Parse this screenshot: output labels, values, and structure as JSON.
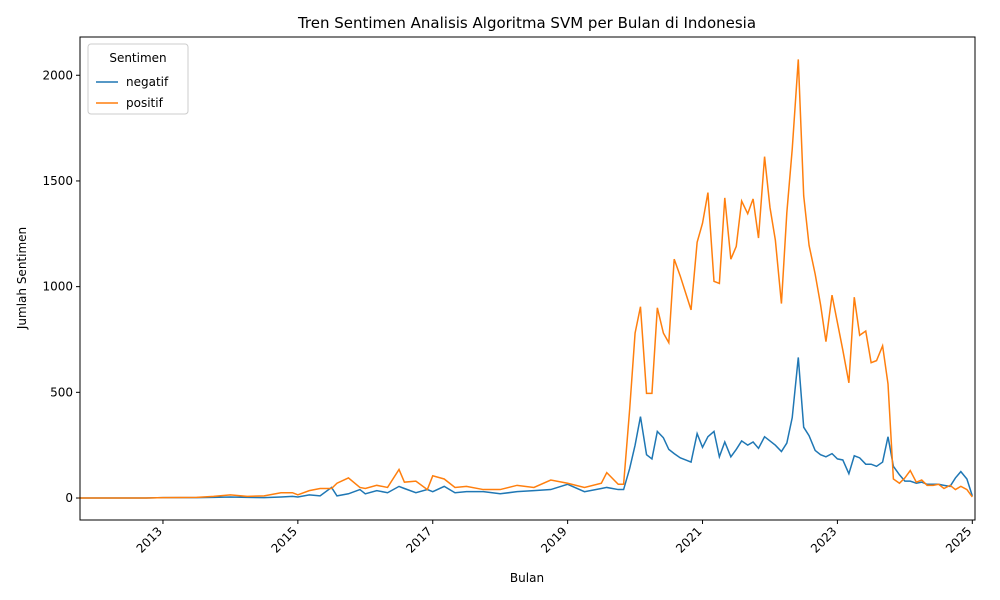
{
  "chart_data": {
    "type": "line",
    "title": "Tren Sentimen Analisis Algoritma SVM per Bulan di Indonesia",
    "x_label": "Bulan",
    "y_label": "Jumlah Sentimen",
    "legend_title": "Sentimen",
    "legend": "upper left",
    "xlim": [
      2011.77,
      2025.04
    ],
    "xticks": [
      2013,
      2015,
      2017,
      2019,
      2021,
      2023,
      2025
    ],
    "ylim": [
      -104,
      2181
    ],
    "yticks": [
      0,
      500,
      1000,
      1500,
      2000
    ],
    "x": [
      2011.75,
      2012.25,
      2012.75,
      2013.0,
      2013.5,
      2013.75,
      2014.0,
      2014.25,
      2014.5,
      2014.75,
      2014.92,
      2015.0,
      2015.17,
      2015.33,
      2015.5,
      2015.58,
      2015.75,
      2015.92,
      2016.0,
      2016.17,
      2016.33,
      2016.5,
      2016.58,
      2016.75,
      2016.92,
      2017.0,
      2017.17,
      2017.33,
      2017.5,
      2017.75,
      2018.0,
      2018.25,
      2018.5,
      2018.75,
      2019.0,
      2019.25,
      2019.5,
      2019.58,
      2019.75,
      2019.83,
      2019.92,
      2020.0,
      2020.08,
      2020.17,
      2020.25,
      2020.33,
      2020.42,
      2020.5,
      2020.58,
      2020.67,
      2020.75,
      2020.83,
      2020.92,
      2021.0,
      2021.08,
      2021.17,
      2021.25,
      2021.33,
      2021.42,
      2021.5,
      2021.58,
      2021.67,
      2021.75,
      2021.83,
      2021.92,
      2022.0,
      2022.08,
      2022.17,
      2022.25,
      2022.33,
      2022.42,
      2022.5,
      2022.58,
      2022.67,
      2022.75,
      2022.83,
      2022.92,
      2023.0,
      2023.08,
      2023.17,
      2023.25,
      2023.33,
      2023.42,
      2023.5,
      2023.58,
      2023.67,
      2023.75,
      2023.83,
      2023.92,
      2024.0,
      2024.08,
      2024.17,
      2024.25,
      2024.33,
      2024.42,
      2024.5,
      2024.58,
      2024.67,
      2024.75,
      2024.83,
      2024.92,
      2025.0
    ],
    "series": [
      {
        "name": "negatif",
        "color": "#1f77b4",
        "values": [
          0,
          0,
          0,
          2,
          2,
          3,
          5,
          3,
          2,
          5,
          8,
          5,
          15,
          10,
          50,
          10,
          20,
          40,
          20,
          35,
          25,
          55,
          45,
          25,
          40,
          30,
          55,
          25,
          30,
          30,
          20,
          30,
          35,
          40,
          65,
          30,
          45,
          50,
          40,
          40,
          140,
          250,
          385,
          205,
          185,
          315,
          285,
          230,
          210,
          190,
          180,
          170,
          305,
          240,
          290,
          315,
          195,
          265,
          195,
          230,
          270,
          250,
          265,
          235,
          290,
          270,
          250,
          220,
          260,
          380,
          665,
          335,
          295,
          225,
          205,
          195,
          210,
          185,
          180,
          115,
          200,
          190,
          160,
          160,
          150,
          170,
          290,
          150,
          110,
          80,
          80,
          70,
          75,
          65,
          65,
          65,
          60,
          55,
          95,
          125,
          90,
          10
        ]
      },
      {
        "name": "positif",
        "color": "#ff7f0e",
        "values": [
          0,
          0,
          0,
          2,
          3,
          8,
          15,
          8,
          10,
          25,
          25,
          15,
          35,
          45,
          45,
          70,
          95,
          50,
          45,
          60,
          50,
          135,
          75,
          80,
          40,
          105,
          90,
          50,
          55,
          40,
          40,
          60,
          50,
          85,
          70,
          50,
          70,
          120,
          65,
          65,
          420,
          780,
          905,
          495,
          495,
          900,
          780,
          735,
          1130,
          1050,
          970,
          890,
          1210,
          1300,
          1445,
          1025,
          1015,
          1420,
          1130,
          1190,
          1405,
          1345,
          1415,
          1230,
          1615,
          1375,
          1220,
          920,
          1350,
          1650,
          2075,
          1430,
          1195,
          1060,
          915,
          740,
          960,
          830,
          700,
          545,
          950,
          770,
          790,
          640,
          650,
          720,
          540,
          90,
          70,
          95,
          130,
          75,
          85,
          60,
          60,
          65,
          45,
          60,
          40,
          55,
          40,
          5
        ]
      }
    ]
  }
}
